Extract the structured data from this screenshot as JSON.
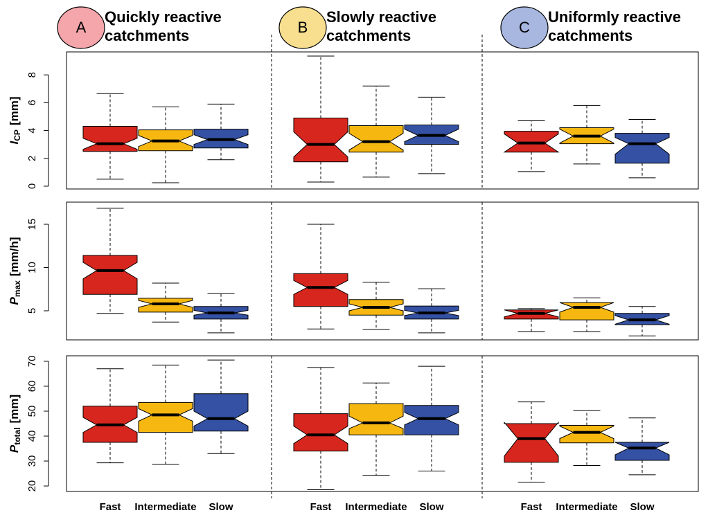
{
  "chart_data": {
    "type": "box",
    "categories": [
      "Fast",
      "Intermediate",
      "Slow"
    ],
    "colors": [
      "#d7261e",
      "#f6b710",
      "#3451a3"
    ],
    "groups": [
      {
        "letter": "A",
        "title": [
          "Quickly reactive",
          "catchments"
        ],
        "color": "#f4a6ab"
      },
      {
        "letter": "B",
        "title": [
          "Slowly reactive",
          "catchments"
        ],
        "color": "#f7df8f"
      },
      {
        "letter": "C",
        "title": [
          "Uniformly reactive",
          "catchments"
        ],
        "color": "#a7b7e0"
      }
    ],
    "panels": [
      {
        "ylabel": {
          "symbol": "I",
          "subscript": "CP",
          "unit": "[mm]"
        },
        "ylim": [
          -0.2,
          9.65
        ],
        "yticks": [
          0,
          2,
          4,
          6,
          8
        ],
        "boxes": [
          [
            {
              "whisker_low": 0.5,
              "q1": 2.5,
              "notch_low": 2.65,
              "median": 3.05,
              "notch_high": 3.45,
              "q3": 4.3,
              "whisker_high": 6.65
            },
            {
              "whisker_low": 0.25,
              "q1": 2.55,
              "notch_low": 2.85,
              "median": 3.25,
              "notch_high": 3.65,
              "q3": 4.05,
              "whisker_high": 5.7
            },
            {
              "whisker_low": 1.9,
              "q1": 2.75,
              "notch_low": 3.0,
              "median": 3.35,
              "notch_high": 3.7,
              "q3": 4.1,
              "whisker_high": 5.9
            }
          ],
          [
            {
              "whisker_low": 0.3,
              "q1": 1.75,
              "notch_low": 2.1,
              "median": 3.0,
              "notch_high": 3.9,
              "q3": 4.9,
              "whisker_high": 9.35
            },
            {
              "whisker_low": 0.65,
              "q1": 2.45,
              "notch_low": 2.6,
              "median": 3.2,
              "notch_high": 3.8,
              "q3": 4.35,
              "whisker_high": 7.2
            },
            {
              "whisker_low": 0.9,
              "q1": 3.0,
              "notch_low": 3.2,
              "median": 3.65,
              "notch_high": 4.1,
              "q3": 4.4,
              "whisker_high": 6.4
            }
          ],
          [
            {
              "whisker_low": 1.05,
              "q1": 2.45,
              "notch_low": 2.45,
              "median": 3.1,
              "notch_high": 3.75,
              "q3": 3.95,
              "whisker_high": 4.7
            },
            {
              "whisker_low": 1.6,
              "q1": 3.05,
              "notch_low": 3.1,
              "median": 3.6,
              "notch_high": 4.1,
              "q3": 4.2,
              "whisker_high": 5.8
            },
            {
              "whisker_low": 0.6,
              "q1": 1.65,
              "notch_low": 2.3,
              "median": 3.05,
              "notch_high": 3.5,
              "q3": 3.8,
              "whisker_high": 4.8
            }
          ]
        ]
      },
      {
        "ylabel": {
          "symbol": "P",
          "subscript": "max",
          "unit": "[mm/h]"
        },
        "ylim": [
          1.64,
          17.56
        ],
        "yticks": [
          5,
          10,
          15
        ],
        "boxes": [
          [
            {
              "whisker_low": 4.7,
              "q1": 6.9,
              "notch_low": 8.7,
              "median": 9.65,
              "notch_high": 10.6,
              "q3": 11.4,
              "whisker_high": 16.85
            },
            {
              "whisker_low": 3.7,
              "q1": 4.85,
              "notch_low": 5.4,
              "median": 5.8,
              "notch_high": 6.2,
              "q3": 6.45,
              "whisker_high": 8.2
            },
            {
              "whisker_low": 2.45,
              "q1": 4.05,
              "notch_low": 4.5,
              "median": 4.75,
              "notch_high": 5.05,
              "q3": 5.5,
              "whisker_high": 7.0
            }
          ],
          [
            {
              "whisker_low": 2.9,
              "q1": 5.5,
              "notch_low": 6.9,
              "median": 7.7,
              "notch_high": 8.5,
              "q3": 9.3,
              "whisker_high": 15.0
            },
            {
              "whisker_low": 2.85,
              "q1": 4.5,
              "notch_low": 5.0,
              "median": 5.4,
              "notch_high": 5.8,
              "q3": 6.3,
              "whisker_high": 8.3
            },
            {
              "whisker_low": 2.45,
              "q1": 4.05,
              "notch_low": 4.45,
              "median": 4.75,
              "notch_high": 5.05,
              "q3": 5.55,
              "whisker_high": 7.55
            }
          ],
          [
            {
              "whisker_low": 2.6,
              "q1": 4.05,
              "notch_low": 4.3,
              "median": 4.7,
              "notch_high": 5.1,
              "q3": 5.1,
              "whisker_high": 5.25
            },
            {
              "whisker_low": 2.6,
              "q1": 3.95,
              "notch_low": 4.85,
              "median": 5.4,
              "notch_high": 5.95,
              "q3": 5.95,
              "whisker_high": 6.5
            },
            {
              "whisker_low": 2.1,
              "q1": 3.4,
              "notch_low": 3.45,
              "median": 3.95,
              "notch_high": 4.45,
              "q3": 4.7,
              "whisker_high": 5.5
            }
          ]
        ]
      },
      {
        "ylabel": {
          "symbol": "P",
          "subscript": "total",
          "unit": "[mm]"
        },
        "ylim": [
          17.8,
          72.2
        ],
        "yticks": [
          20,
          30,
          40,
          50,
          60,
          70
        ],
        "boxes": [
          [
            {
              "whisker_low": 29.3,
              "q1": 37.5,
              "notch_low": 41.5,
              "median": 44.5,
              "notch_high": 47.5,
              "q3": 52,
              "whisker_high": 67
            },
            {
              "whisker_low": 28.7,
              "q1": 41.5,
              "notch_low": 46,
              "median": 48.5,
              "notch_high": 51,
              "q3": 53.5,
              "whisker_high": 68.5
            },
            {
              "whisker_low": 33,
              "q1": 42,
              "notch_low": 44,
              "median": 47,
              "notch_high": 50,
              "q3": 57,
              "whisker_high": 70.5
            }
          ],
          [
            {
              "whisker_low": 18.5,
              "q1": 34,
              "notch_low": 37,
              "median": 40.5,
              "notch_high": 44,
              "q3": 49,
              "whisker_high": 67.5
            },
            {
              "whisker_low": 24.3,
              "q1": 40.5,
              "notch_low": 43,
              "median": 45.3,
              "notch_high": 48,
              "q3": 53,
              "whisker_high": 61.3
            },
            {
              "whisker_low": 26,
              "q1": 40.5,
              "notch_low": 44.5,
              "median": 47,
              "notch_high": 49.5,
              "q3": 52.3,
              "whisker_high": 68
            }
          ],
          [
            {
              "whisker_low": 21.5,
              "q1": 29.5,
              "notch_low": 32,
              "median": 39,
              "notch_high": 45.5,
              "q3": 45,
              "whisker_high": 53.7
            },
            {
              "whisker_low": 28.2,
              "q1": 37.3,
              "notch_low": 39,
              "median": 41.5,
              "notch_high": 44,
              "q3": 44.3,
              "whisker_high": 50.2
            },
            {
              "whisker_low": 24.5,
              "q1": 30.3,
              "notch_low": 32.5,
              "median": 35.2,
              "notch_high": 37.5,
              "q3": 37.5,
              "whisker_high": 47.3
            }
          ]
        ]
      }
    ]
  }
}
